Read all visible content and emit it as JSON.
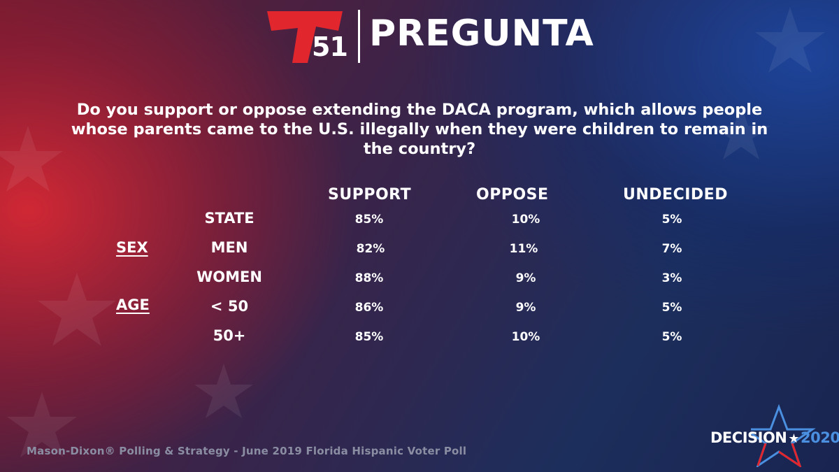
{
  "header": {
    "logo_number": "51",
    "title": "PREGUNTA"
  },
  "question": "Do you support or oppose extending the DACA program, which allows people whose parents came to the U.S. illegally when they were children to remain in the country?",
  "table": {
    "columns": [
      "SUPPORT",
      "OPPOSE",
      "UNDECIDED"
    ],
    "groups": [
      {
        "label": "SEX"
      },
      {
        "label": "AGE"
      }
    ],
    "rows": [
      {
        "label": "STATE",
        "values": [
          "85%",
          "10%",
          "5%"
        ]
      },
      {
        "label": "MEN",
        "values": [
          "82%",
          "11%",
          "7%"
        ]
      },
      {
        "label": "WOMEN",
        "values": [
          "88%",
          "9%",
          "3%"
        ]
      },
      {
        "label": "< 50",
        "values": [
          "86%",
          "9%",
          "5%"
        ]
      },
      {
        "label": "50+",
        "values": [
          "85%",
          "10%",
          "5%"
        ]
      }
    ]
  },
  "chart_data": {
    "type": "table",
    "title": "Do you support or oppose extending the DACA program, which allows people whose parents came to the U.S. illegally when they were children to remain in the country?",
    "columns": [
      "SUPPORT",
      "OPPOSE",
      "UNDECIDED"
    ],
    "rows": [
      {
        "group": "",
        "label": "STATE",
        "values": [
          85,
          10,
          5
        ]
      },
      {
        "group": "SEX",
        "label": "MEN",
        "values": [
          82,
          11,
          7
        ]
      },
      {
        "group": "SEX",
        "label": "WOMEN",
        "values": [
          88,
          9,
          3
        ]
      },
      {
        "group": "AGE",
        "label": "< 50",
        "values": [
          86,
          9,
          5
        ]
      },
      {
        "group": "AGE",
        "label": "50+",
        "values": [
          85,
          10,
          5
        ]
      }
    ],
    "unit": "%"
  },
  "footer": {
    "source": "Mason-Dixon® Polling & Strategy - June 2019 Florida Hispanic Voter Poll",
    "brand_word": "DECISION",
    "brand_year": "2020"
  },
  "colors": {
    "logo_red": "#e1262d",
    "accent_blue": "#4a8fe0",
    "source_gray": "#8b8ea3"
  }
}
